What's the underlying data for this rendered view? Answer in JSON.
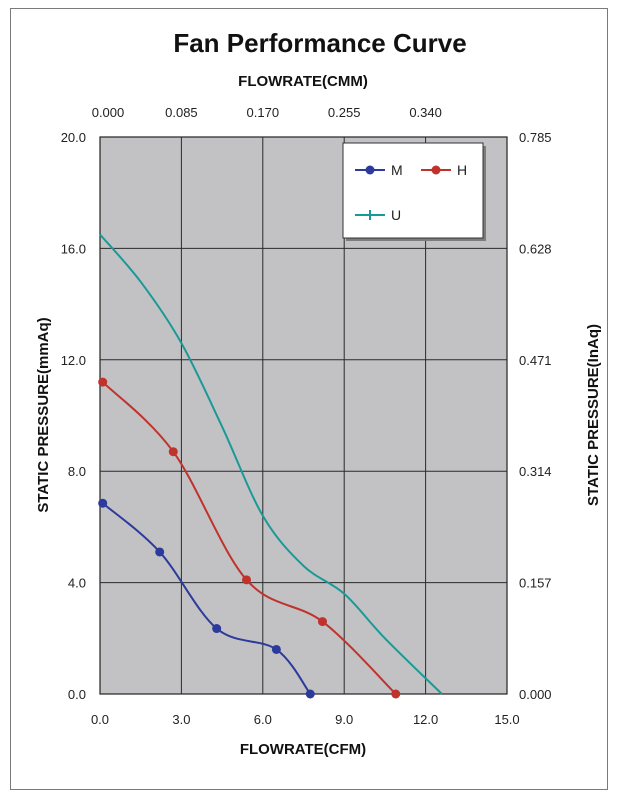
{
  "chart_data": {
    "type": "line",
    "title": "Fan Performance Curve",
    "xlabel": "FLOWRATE(CFM)",
    "x2label": "FLOWRATE(CMM)",
    "ylabel": "STATIC PRESSURE(mmAq)",
    "y2label": "STATIC PRESSURE(InAq)",
    "xlim": [
      0,
      15
    ],
    "ylim": [
      0,
      20
    ],
    "grid": true,
    "legend_position": "top-right",
    "x_ticks": [
      "0.0",
      "3.0",
      "6.0",
      "9.0",
      "12.0",
      "15.0"
    ],
    "y_ticks": [
      "0.0",
      "4.0",
      "8.0",
      "12.0",
      "16.0",
      "20.0"
    ],
    "x2_ticks": [
      "0.000",
      "0.085",
      "0.170",
      "0.255",
      "0.340"
    ],
    "y2_ticks": [
      "0.000",
      "0.157",
      "0.314",
      "0.471",
      "0.628",
      "0.785"
    ],
    "series": [
      {
        "name": "M",
        "color": "#2b3a9c",
        "marker": "circle",
        "points": [
          [
            0.1,
            6.85
          ],
          [
            2.2,
            5.1
          ],
          [
            4.3,
            2.35
          ],
          [
            6.5,
            1.6
          ],
          [
            7.75,
            0.0
          ]
        ]
      },
      {
        "name": "H",
        "color": "#c0322c",
        "marker": "circle",
        "points": [
          [
            0.1,
            11.2
          ],
          [
            2.7,
            8.7
          ],
          [
            5.4,
            4.1
          ],
          [
            8.2,
            2.6
          ],
          [
            10.9,
            0.0
          ]
        ]
      },
      {
        "name": "U",
        "color": "#1a9a96",
        "marker": "plus",
        "points": [
          [
            0.0,
            16.5
          ],
          [
            1.5,
            14.8
          ],
          [
            3.0,
            12.6
          ],
          [
            4.5,
            9.6
          ],
          [
            6.0,
            6.4
          ],
          [
            7.5,
            4.6
          ],
          [
            9.0,
            3.6
          ],
          [
            10.5,
            2.0
          ],
          [
            12.6,
            0.0
          ]
        ]
      }
    ]
  }
}
